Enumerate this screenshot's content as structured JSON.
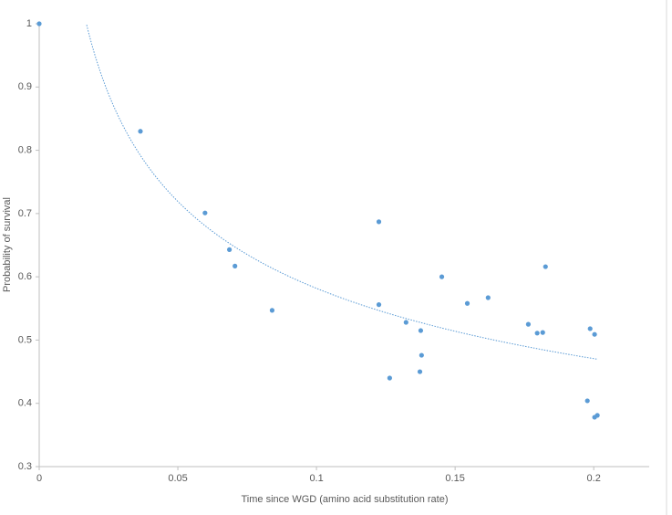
{
  "chart_data": {
    "type": "scatter",
    "x_label": "Time since WGD (amino acid substitution rate)",
    "y_label": "Probability of survival",
    "color": "#5b9bd5",
    "trendline": true,
    "x": [
      0,
      0.0365,
      0.0598,
      0.0686,
      0.0706,
      0.084,
      0.1225,
      0.1225,
      0.1264,
      0.1323,
      0.1376,
      0.1379,
      0.1373,
      0.1452,
      0.1544,
      0.1619,
      0.1764,
      0.1796,
      0.1816,
      0.1826,
      0.1987,
      0.1977,
      0.2003,
      0.2003,
      0.2013
    ],
    "values": [
      1,
      0.83,
      0.701,
      0.643,
      0.617,
      0.547,
      0.687,
      0.556,
      0.44,
      0.528,
      0.515,
      0.476,
      0.45,
      0.6,
      0.558,
      0.567,
      0.525,
      0.511,
      0.512,
      0.616,
      0.518,
      0.404,
      0.509,
      0.378,
      0.381
    ],
    "xlim": [
      0,
      0.22
    ],
    "xticks": [
      0,
      0.05,
      0.1,
      0.15,
      0.2
    ],
    "ylim": [
      0.3,
      1
    ],
    "yticks": [
      0.3,
      0.4,
      0.5,
      0.6,
      0.7,
      0.8,
      0.9,
      1
    ]
  }
}
